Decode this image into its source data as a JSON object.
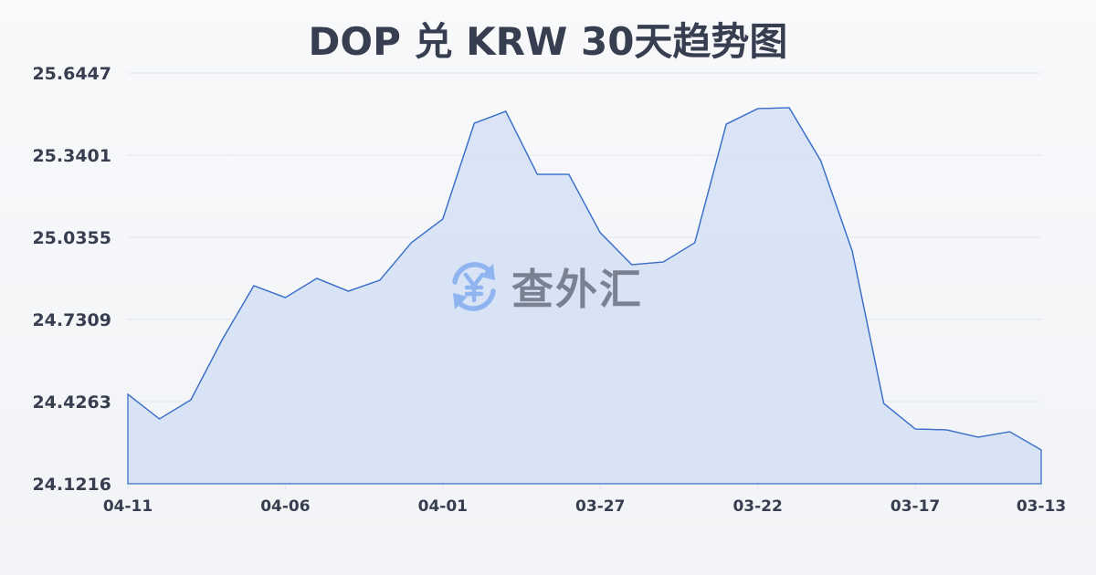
{
  "title": "DOP 兑 KRW 30天趋势图",
  "watermark": {
    "icon": "yen-exchange-icon",
    "text": "查外汇",
    "icon_color": "#8fb4f0",
    "text_color": "#7a8191"
  },
  "colors": {
    "line": "#3a6fc9",
    "fill": "#d6e1f5",
    "grid": "#e2e5ea",
    "text": "#363e4f"
  },
  "chart_data": {
    "type": "area",
    "title": "DOP 兑 KRW 30天趋势图",
    "xlabel": "",
    "ylabel": "",
    "ylim": [
      24.1216,
      25.6447
    ],
    "yticks": [
      "25.6447",
      "25.3401",
      "25.0355",
      "24.7309",
      "24.4263",
      "24.1216"
    ],
    "xticks": [
      "04-11",
      "04-06",
      "04-01",
      "03-27",
      "03-22",
      "03-17",
      "03-13"
    ],
    "grid": true,
    "legend": "none",
    "x": [
      "04-11",
      "04-10",
      "04-09",
      "04-08",
      "04-07",
      "04-06",
      "04-05",
      "04-04",
      "04-03",
      "04-02",
      "04-01",
      "03-31",
      "03-30",
      "03-29",
      "03-28",
      "03-27",
      "03-26",
      "03-25",
      "03-24",
      "03-23",
      "03-22",
      "03-21",
      "03-20",
      "03-19",
      "03-18",
      "03-17",
      "03-16",
      "03-15",
      "03-14",
      "03-13"
    ],
    "series": [
      {
        "name": "DOP/KRW",
        "values": [
          24.4533,
          24.3619,
          24.433,
          24.6564,
          24.8561,
          24.8121,
          24.8831,
          24.8358,
          24.8764,
          25.0151,
          25.1031,
          25.4585,
          25.5025,
          25.269,
          25.269,
          25.0524,
          24.9339,
          24.9441,
          25.0151,
          25.4552,
          25.5127,
          25.5161,
          25.3198,
          24.9847,
          24.4194,
          24.3247,
          24.3213,
          24.2942,
          24.3145,
          24.2468
        ]
      }
    ]
  }
}
